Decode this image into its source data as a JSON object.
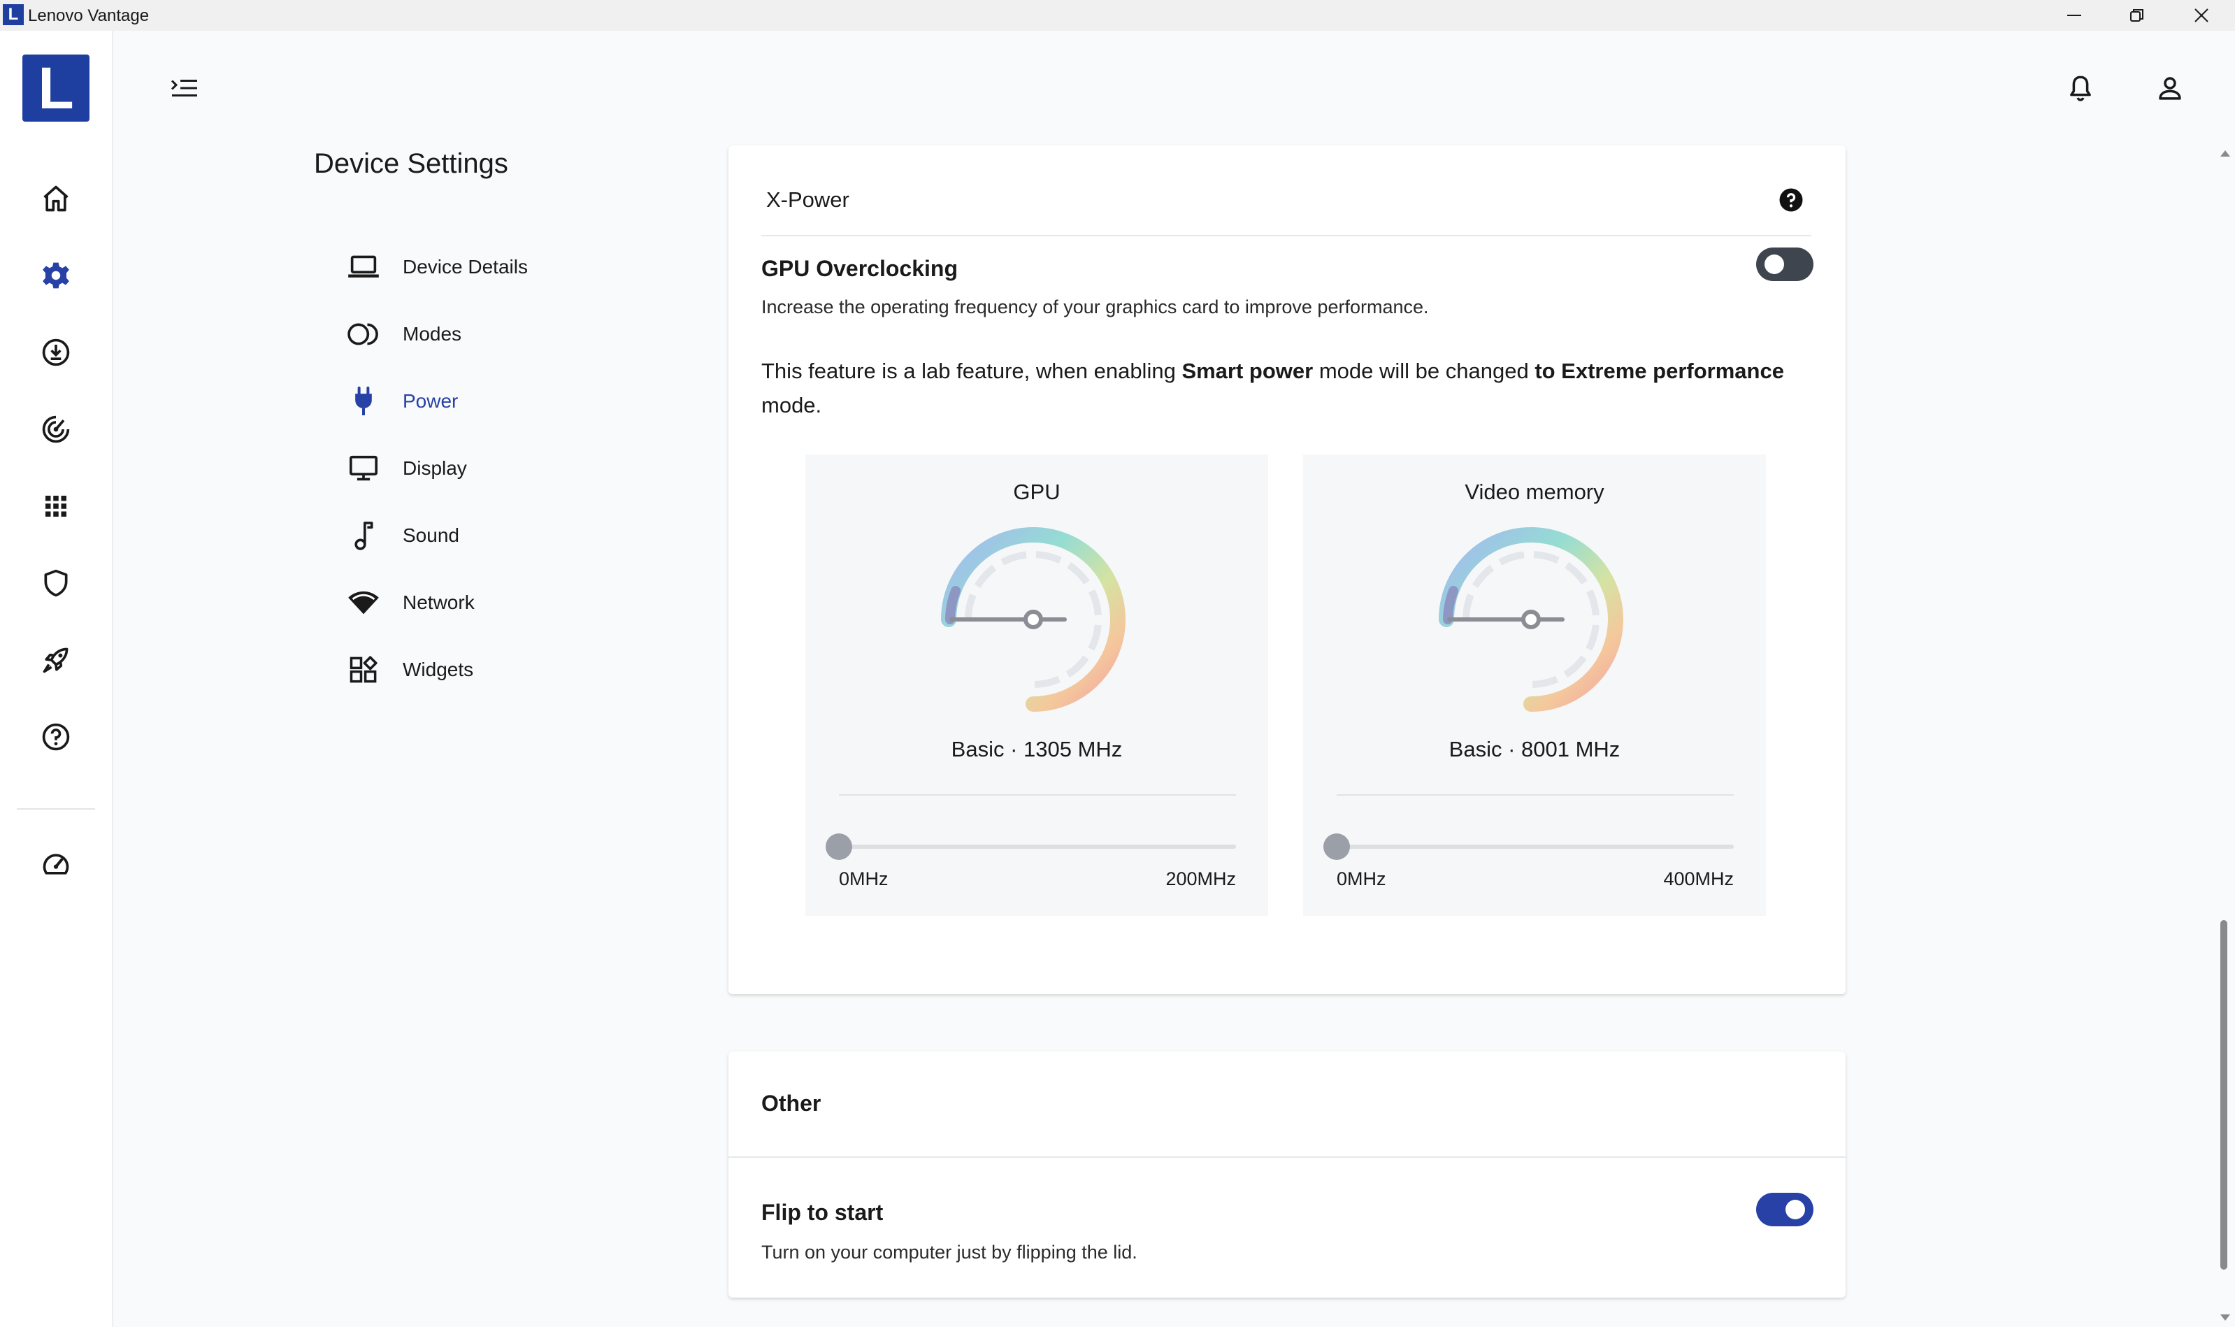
{
  "window": {
    "app_logo_letter": "L",
    "title": "Lenovo Vantage",
    "controls": [
      "minimize",
      "restore",
      "close"
    ]
  },
  "rail": {
    "brand_letter": "L",
    "items": [
      "home",
      "device-settings",
      "system-update",
      "gaming",
      "apps",
      "security",
      "boost",
      "help",
      "speedometer"
    ],
    "active": "device-settings"
  },
  "settings_nav": {
    "title": "Device Settings",
    "items": [
      {
        "label": "Device Details",
        "icon": "laptop-icon"
      },
      {
        "label": "Modes",
        "icon": "modes-icon"
      },
      {
        "label": "Power",
        "icon": "plug-icon",
        "active": true
      },
      {
        "label": "Display",
        "icon": "monitor-icon"
      },
      {
        "label": "Sound",
        "icon": "music-note-icon"
      },
      {
        "label": "Network",
        "icon": "wifi-icon"
      },
      {
        "label": "Widgets",
        "icon": "widgets-icon"
      }
    ]
  },
  "xpower": {
    "header": "X-Power",
    "gpu_oc": {
      "title": "GPU Overclocking",
      "description": "Increase the operating frequency of your graphics card to improve performance.",
      "enabled": false
    },
    "lab_note": {
      "part1": "This feature is a lab feature, when enabling ",
      "bold1": "Smart power",
      "part2": " mode will be changed ",
      "bold2": "to Extreme performance",
      "part3": " mode."
    },
    "gauges": [
      {
        "title": "GPU",
        "value_label": "Basic · 1305 MHz",
        "slider_min": "0MHz",
        "slider_max": "200MHz",
        "slider_value": 0
      },
      {
        "title": "Video memory",
        "value_label": "Basic · 8001 MHz",
        "slider_min": "0MHz",
        "slider_max": "400MHz",
        "slider_value": 0
      }
    ]
  },
  "other": {
    "header": "Other",
    "flip": {
      "title": "Flip to start",
      "description": "Turn on your computer just by flipping the lid.",
      "enabled": true
    }
  },
  "colors": {
    "accent": "#2741a6",
    "brand": "#1f3fa0",
    "toggle_off": "#3e454f"
  }
}
